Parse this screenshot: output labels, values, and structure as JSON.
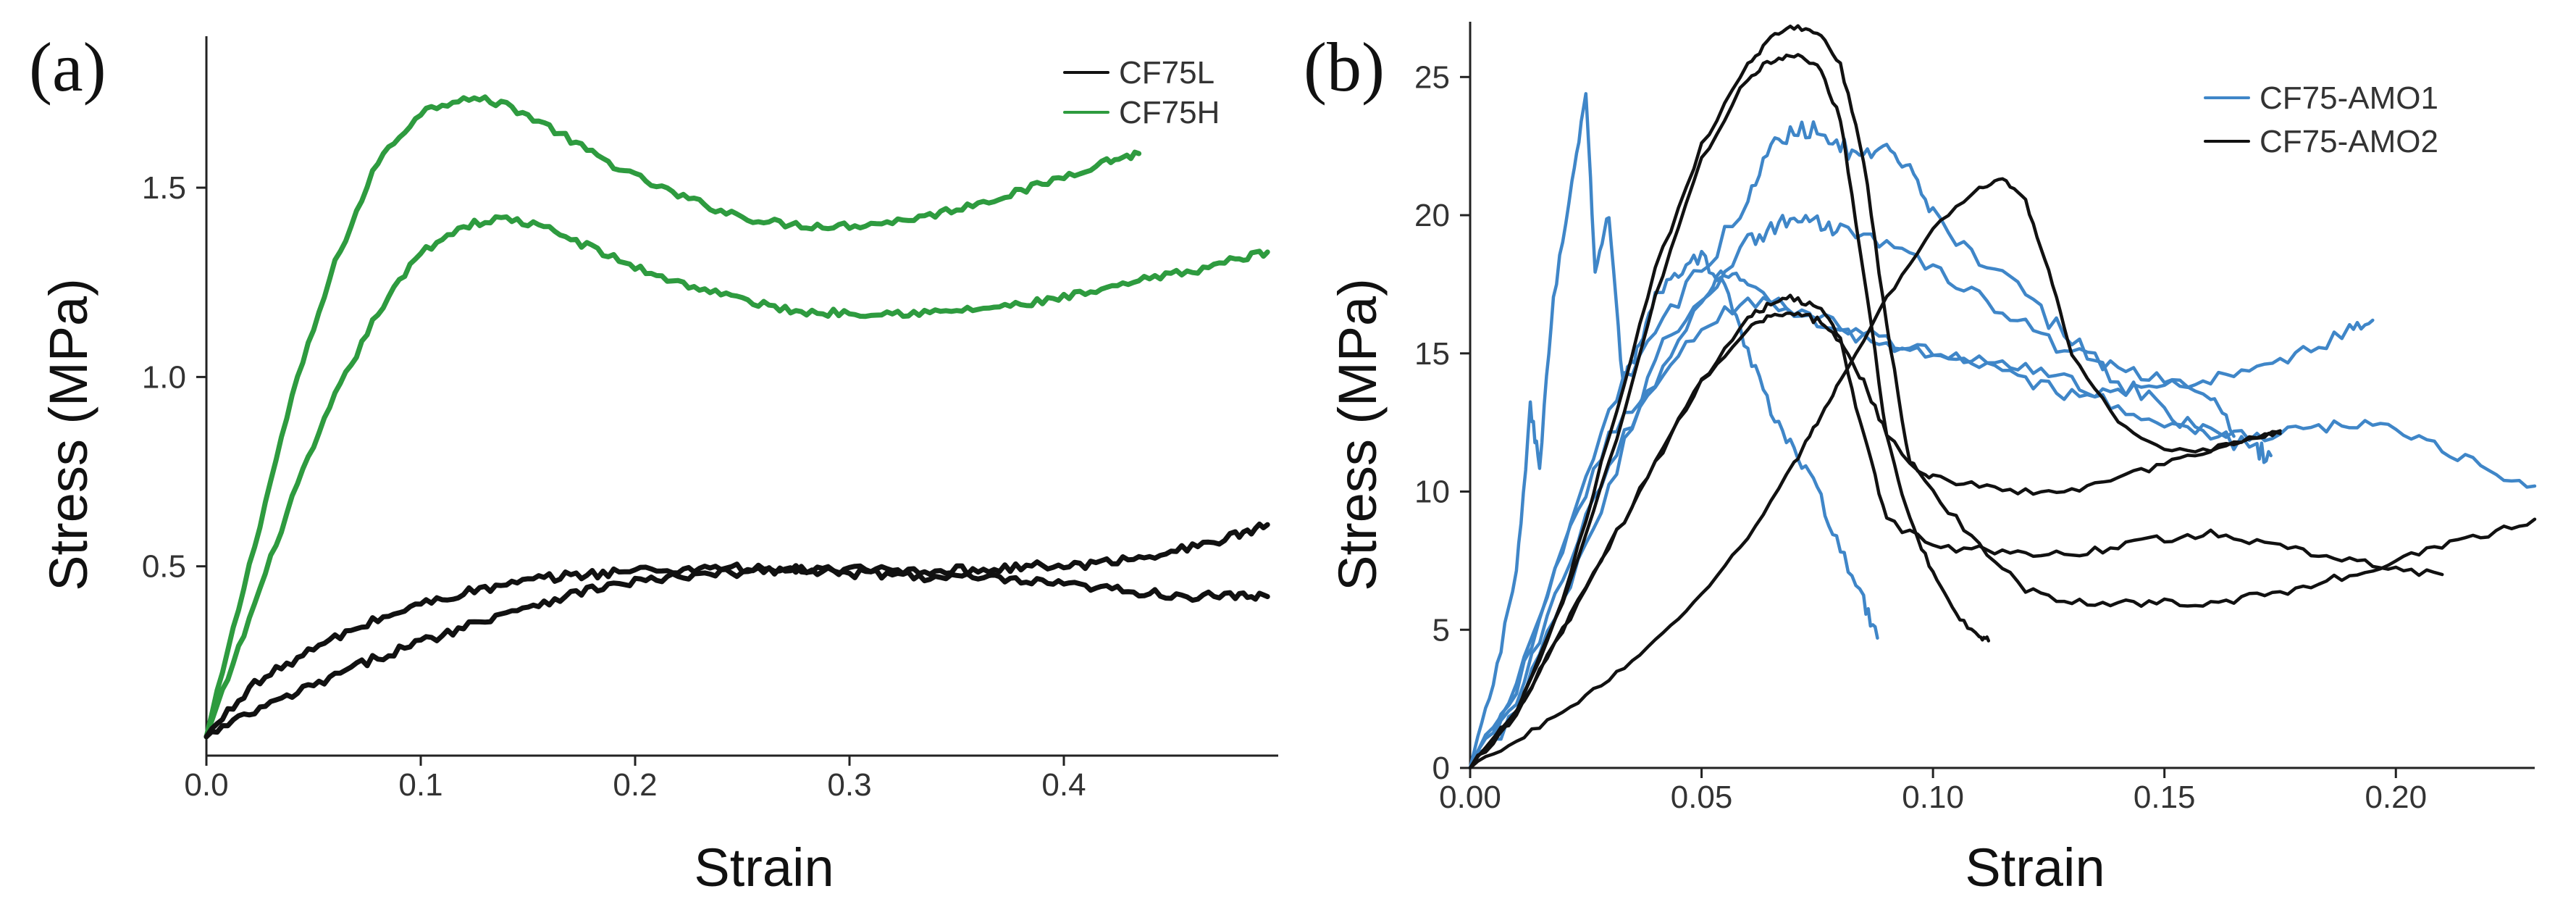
{
  "chart_data": [
    {
      "type": "line",
      "panel_label": "(a)",
      "xlabel": "Strain",
      "ylabel": "Stress (MPa)",
      "xlim": [
        0,
        0.5
      ],
      "ylim": [
        0,
        1.9
      ],
      "xticks": [
        0.0,
        0.1,
        0.2,
        0.3,
        0.4
      ],
      "xtick_labels": [
        "0.0",
        "0.1",
        "0.2",
        "0.3",
        "0.4"
      ],
      "yticks": [
        0.5,
        1.0,
        1.5
      ],
      "ytick_labels": [
        "0.5",
        "1.0",
        "1.5"
      ],
      "legend": [
        {
          "name": "CF75L",
          "color": "#111111"
        },
        {
          "name": "CF75H",
          "color": "#2e9b3f"
        }
      ],
      "legend_position": "top-right",
      "series": [
        {
          "name": "CF75H",
          "color": "#2e9b3f",
          "noise": 0.01,
          "x": [
            0,
            0.02,
            0.04,
            0.06,
            0.08,
            0.1,
            0.12,
            0.14,
            0.16,
            0.18,
            0.2,
            0.22,
            0.24,
            0.26,
            0.28,
            0.3,
            0.32,
            0.34,
            0.36,
            0.38,
            0.4,
            0.42,
            0.435
          ],
          "y": [
            0.05,
            0.5,
            0.95,
            1.3,
            1.57,
            1.7,
            1.74,
            1.72,
            1.66,
            1.59,
            1.53,
            1.48,
            1.44,
            1.41,
            1.4,
            1.4,
            1.41,
            1.43,
            1.46,
            1.49,
            1.53,
            1.57,
            1.59
          ]
        },
        {
          "name": "CF75H",
          "color": "#2e9b3f",
          "noise": 0.01,
          "x": [
            0,
            0.02,
            0.04,
            0.06,
            0.08,
            0.1,
            0.12,
            0.14,
            0.16,
            0.18,
            0.2,
            0.22,
            0.24,
            0.26,
            0.28,
            0.3,
            0.32,
            0.34,
            0.36,
            0.38,
            0.4,
            0.42,
            0.44,
            0.46,
            0.48,
            0.495
          ],
          "y": [
            0.05,
            0.36,
            0.68,
            0.95,
            1.17,
            1.33,
            1.4,
            1.42,
            1.39,
            1.34,
            1.29,
            1.25,
            1.22,
            1.19,
            1.17,
            1.17,
            1.17,
            1.17,
            1.18,
            1.19,
            1.21,
            1.23,
            1.26,
            1.28,
            1.31,
            1.33
          ]
        },
        {
          "name": "CF75L",
          "color": "#111111",
          "noise": 0.012,
          "x": [
            0,
            0.02,
            0.04,
            0.06,
            0.08,
            0.1,
            0.12,
            0.14,
            0.16,
            0.18,
            0.2,
            0.22,
            0.24,
            0.26,
            0.28,
            0.3,
            0.32,
            0.34,
            0.36,
            0.38,
            0.4,
            0.42,
            0.44,
            0.46,
            0.48,
            0.495
          ],
          "y": [
            0.05,
            0.18,
            0.25,
            0.31,
            0.36,
            0.4,
            0.43,
            0.45,
            0.47,
            0.48,
            0.49,
            0.49,
            0.5,
            0.49,
            0.49,
            0.48,
            0.48,
            0.47,
            0.47,
            0.46,
            0.45,
            0.44,
            0.43,
            0.42,
            0.42,
            0.42
          ]
        },
        {
          "name": "CF75L",
          "color": "#111111",
          "noise": 0.012,
          "x": [
            0,
            0.02,
            0.04,
            0.06,
            0.08,
            0.1,
            0.12,
            0.14,
            0.16,
            0.18,
            0.2,
            0.22,
            0.24,
            0.26,
            0.28,
            0.3,
            0.32,
            0.34,
            0.36,
            0.38,
            0.4,
            0.42,
            0.44,
            0.46,
            0.48,
            0.495
          ],
          "y": [
            0.05,
            0.11,
            0.16,
            0.21,
            0.26,
            0.3,
            0.34,
            0.38,
            0.41,
            0.44,
            0.46,
            0.47,
            0.48,
            0.49,
            0.49,
            0.49,
            0.49,
            0.49,
            0.49,
            0.5,
            0.5,
            0.51,
            0.53,
            0.55,
            0.58,
            0.61
          ]
        }
      ]
    },
    {
      "type": "line",
      "panel_label": "(b)",
      "xlabel": "Strain",
      "ylabel": "Stress (MPa)",
      "xlim": [
        0,
        0.23
      ],
      "ylim": [
        0,
        27
      ],
      "xticks": [
        0.0,
        0.05,
        0.1,
        0.15,
        0.2
      ],
      "xtick_labels": [
        "0.00",
        "0.05",
        "0.10",
        "0.15",
        "0.20"
      ],
      "yticks": [
        0,
        5,
        10,
        15,
        20,
        25
      ],
      "ytick_labels": [
        "0",
        "5",
        "10",
        "15",
        "20",
        "25"
      ],
      "legend": [
        {
          "name": "CF75-AMO1",
          "color": "#3f86c8"
        },
        {
          "name": "CF75-AMO2",
          "color": "#111111"
        }
      ],
      "legend_position": "top-right",
      "series": [
        {
          "name": "CF75-AMO1",
          "color": "#3f86c8",
          "noise": 0.25,
          "x": [
            0,
            0.005,
            0.01,
            0.013,
            0.015,
            0.018,
            0.022,
            0.025,
            0.027,
            0.03,
            0.033,
            0.036,
            0.04,
            0.045,
            0.05,
            0.055,
            0.06,
            0.065,
            0.07,
            0.075,
            0.08,
            0.085,
            0.088
          ],
          "y": [
            0,
            3,
            7,
            13,
            11,
            17,
            21,
            24.5,
            18,
            20,
            14,
            15,
            17,
            18,
            18.5,
            17.5,
            15,
            13,
            11.5,
            10,
            8,
            6,
            4.7
          ]
        },
        {
          "name": "CF75-AMO1",
          "color": "#3f86c8",
          "noise": 0.35,
          "x": [
            0,
            0.01,
            0.02,
            0.03,
            0.04,
            0.05,
            0.06,
            0.065,
            0.07,
            0.075,
            0.08,
            0.085,
            0.09,
            0.095,
            0.1,
            0.11,
            0.12,
            0.13,
            0.14,
            0.15,
            0.16,
            0.17,
            0.173
          ],
          "y": [
            0,
            3,
            8,
            13,
            16,
            18,
            20.5,
            22.5,
            23,
            23.2,
            22.5,
            22,
            22.3,
            21.5,
            20,
            18.5,
            17,
            15.5,
            14,
            13,
            12,
            11.5,
            11.3
          ]
        },
        {
          "name": "CF75-AMO1",
          "color": "#3f86c8",
          "noise": 0.3,
          "x": [
            0,
            0.01,
            0.02,
            0.03,
            0.04,
            0.05,
            0.06,
            0.065,
            0.07,
            0.075,
            0.08,
            0.09,
            0.1,
            0.11,
            0.12,
            0.13,
            0.14,
            0.15,
            0.16,
            0.165
          ],
          "y": [
            0,
            2,
            6,
            10,
            15,
            17,
            19,
            19.5,
            20,
            19.7,
            19.5,
            19,
            18,
            17,
            16,
            15,
            14.5,
            14,
            13.5,
            12
          ]
        },
        {
          "name": "CF75-AMO1",
          "color": "#3f86c8",
          "noise": 0.25,
          "x": [
            0,
            0.01,
            0.02,
            0.03,
            0.04,
            0.05,
            0.06,
            0.07,
            0.08,
            0.09,
            0.1,
            0.11,
            0.12,
            0.13,
            0.14,
            0.15,
            0.16,
            0.17,
            0.18,
            0.19,
            0.195
          ],
          "y": [
            0,
            2.5,
            7,
            11,
            14,
            16,
            17,
            16.5,
            16,
            15.5,
            15,
            14.5,
            14,
            13.5,
            13.5,
            14,
            14,
            14.5,
            15,
            15.8,
            16.2
          ]
        },
        {
          "name": "CF75-AMO1",
          "color": "#3f86c8",
          "noise": 0.2,
          "x": [
            0,
            0.01,
            0.02,
            0.03,
            0.04,
            0.05,
            0.055,
            0.06,
            0.07,
            0.08,
            0.09,
            0.1,
            0.11,
            0.12,
            0.13,
            0.14,
            0.15,
            0.16,
            0.17,
            0.18,
            0.19,
            0.2,
            0.21,
            0.22,
            0.23
          ],
          "y": [
            0,
            3,
            8,
            12,
            14,
            17,
            18,
            17.5,
            16.5,
            15.8,
            15.2,
            15,
            14.8,
            14.5,
            14,
            13,
            12.5,
            12.2,
            12,
            12.2,
            12.5,
            12.3,
            11.5,
            10.8,
            10.2
          ]
        },
        {
          "name": "CF75-AMO2",
          "color": "#111111",
          "noise": 0.12,
          "x": [
            0,
            0.01,
            0.02,
            0.03,
            0.04,
            0.05,
            0.06,
            0.065,
            0.07,
            0.075,
            0.08,
            0.085,
            0.09,
            0.095,
            0.1,
            0.11,
            0.12,
            0.13,
            0.14,
            0.15,
            0.16,
            0.17,
            0.175
          ],
          "y": [
            0,
            2,
            6,
            12,
            18,
            22.5,
            25.5,
            26.4,
            26.8,
            26.6,
            25.5,
            22,
            16,
            11,
            10.5,
            10.2,
            10,
            10,
            10.5,
            11,
            11.5,
            12,
            12.1
          ]
        },
        {
          "name": "CF75-AMO2",
          "color": "#111111",
          "noise": 0.12,
          "x": [
            0,
            0.01,
            0.02,
            0.03,
            0.04,
            0.05,
            0.06,
            0.065,
            0.07,
            0.075,
            0.08,
            0.085,
            0.09,
            0.095,
            0.1,
            0.105,
            0.11,
            0.112
          ],
          "y": [
            0,
            2,
            6,
            11,
            17,
            22,
            25,
            25.6,
            25.8,
            25.5,
            23.5,
            18,
            12,
            9,
            7,
            5.5,
            4.7,
            4.6
          ]
        },
        {
          "name": "CF75-AMO2",
          "color": "#111111",
          "noise": 0.15,
          "x": [
            0,
            0.01,
            0.02,
            0.03,
            0.04,
            0.05,
            0.06,
            0.065,
            0.07,
            0.075,
            0.08,
            0.085,
            0.09,
            0.1,
            0.11,
            0.12,
            0.13,
            0.14,
            0.15,
            0.16,
            0.17,
            0.18,
            0.19,
            0.2,
            0.21
          ],
          "y": [
            0,
            2,
            5,
            8,
            11,
            14,
            16.3,
            16.8,
            17,
            16.8,
            15.5,
            12,
            9,
            8,
            7.9,
            7.8,
            7.7,
            8,
            8.3,
            8.5,
            8.2,
            7.8,
            7.5,
            7.2,
            7.0
          ]
        },
        {
          "name": "CF75-AMO2",
          "color": "#111111",
          "noise": 0.15,
          "x": [
            0,
            0.01,
            0.02,
            0.03,
            0.04,
            0.05,
            0.06,
            0.065,
            0.07,
            0.075,
            0.08,
            0.085,
            0.09,
            0.1,
            0.11,
            0.12,
            0.13,
            0.14,
            0.15,
            0.16,
            0.17,
            0.18,
            0.19,
            0.2,
            0.21,
            0.22,
            0.23
          ],
          "y": [
            0,
            2,
            5,
            8,
            11,
            14,
            16,
            16.3,
            16.5,
            16.2,
            15.5,
            14,
            12,
            10,
            8,
            6.5,
            6,
            6,
            6,
            6,
            6.2,
            6.5,
            7,
            7.5,
            8,
            8.5,
            9
          ]
        },
        {
          "name": "CF75-AMO2",
          "color": "#111111",
          "noise": 0.08,
          "x": [
            0,
            0.01,
            0.02,
            0.03,
            0.04,
            0.05,
            0.06,
            0.07,
            0.075,
            0.08,
            0.09,
            0.1,
            0.11,
            0.115,
            0.12,
            0.125,
            0.13,
            0.14,
            0.15,
            0.16,
            0.17,
            0.175
          ],
          "y": [
            0,
            1,
            2,
            3.2,
            4.6,
            6.3,
            8.3,
            11,
            12.5,
            14,
            17,
            19.5,
            21,
            21.3,
            20.5,
            18,
            15,
            12.5,
            11.5,
            11.5,
            12,
            12.2
          ]
        }
      ]
    }
  ]
}
